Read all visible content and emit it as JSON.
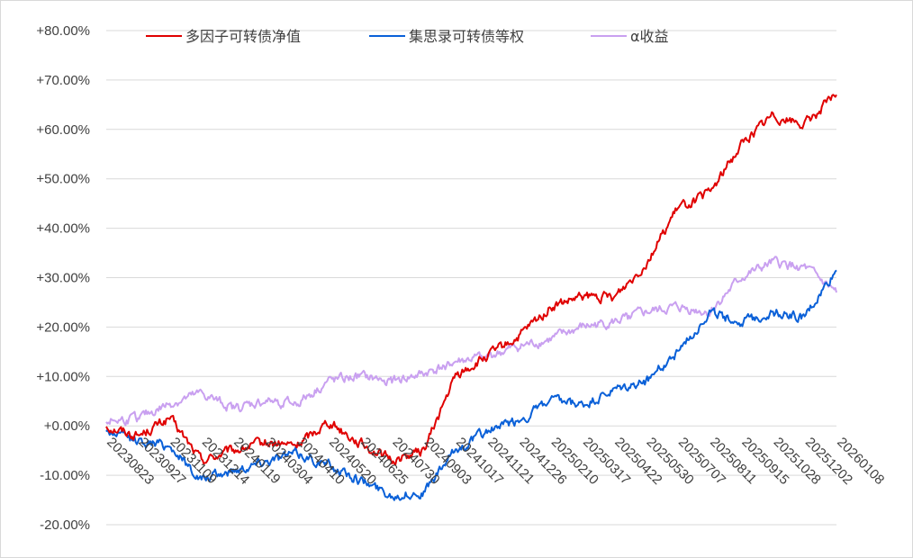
{
  "chart_data": {
    "type": "line",
    "title": "",
    "xlabel": "",
    "ylabel": "",
    "ylim": [
      -20,
      80
    ],
    "grid": true,
    "legend_position": "top",
    "y_ticks": [
      "+80.00%",
      "+70.00%",
      "+60.00%",
      "+50.00%",
      "+40.00%",
      "+30.00%",
      "+20.00%",
      "+10.00%",
      "+0.00%",
      "-10.00%",
      "-20.00%"
    ],
    "y_tick_values": [
      80,
      70,
      60,
      50,
      40,
      30,
      20,
      10,
      0,
      -10,
      -20
    ],
    "x_ticks": [
      "20230823",
      "20230927",
      "20231109",
      "20231214",
      "20240119",
      "20240304",
      "20240410",
      "20240520",
      "20240625",
      "20240730",
      "20240903",
      "20241017",
      "20241121",
      "20241226",
      "20250210",
      "20250317",
      "20250422",
      "20250530",
      "20250707",
      "20250811",
      "20250915",
      "20251028",
      "20251202",
      "20260108"
    ],
    "x": [
      "20230823",
      "20230927",
      "20231109",
      "20231214",
      "20240119",
      "20240304",
      "20240410",
      "20240520",
      "20240625",
      "20240730",
      "20240903",
      "20241017",
      "20241121",
      "20241226",
      "20250210",
      "20250317",
      "20250422",
      "20250530",
      "20250707",
      "20250811",
      "20250915",
      "20251028",
      "20251202",
      "20260108"
    ],
    "series": [
      {
        "name": "多因子可转债净值",
        "color": "#e00000",
        "values": [
          0.0,
          -2.0,
          1.5,
          -7.0,
          -5.0,
          -3.5,
          -4.0,
          1.0,
          -3.5,
          -7.0,
          -5.0,
          10.0,
          14.0,
          18.0,
          24.0,
          26.0,
          26.0,
          33.0,
          44.0,
          47.0,
          57.0,
          63.0,
          61.0,
          67.0
        ]
      },
      {
        "name": "集思录可转债等权",
        "color": "#0a60d8",
        "values": [
          -1.0,
          -3.0,
          -4.0,
          -11.0,
          -9.0,
          -7.0,
          -5.5,
          -8.0,
          -11.0,
          -14.0,
          -13.5,
          -5.0,
          -1.0,
          1.0,
          5.0,
          4.0,
          7.0,
          9.0,
          15.0,
          23.0,
          21.0,
          23.0,
          22.0,
          31.5
        ]
      },
      {
        "name": "α收益",
        "color": "#c9a0f0",
        "values": [
          1.0,
          1.5,
          4.5,
          6.5,
          3.5,
          5.0,
          4.5,
          9.0,
          10.0,
          9.0,
          10.5,
          13.0,
          14.0,
          16.0,
          17.5,
          20.0,
          21.0,
          23.0,
          24.0,
          23.0,
          30.0,
          33.0,
          32.0,
          27.0
        ]
      }
    ]
  }
}
